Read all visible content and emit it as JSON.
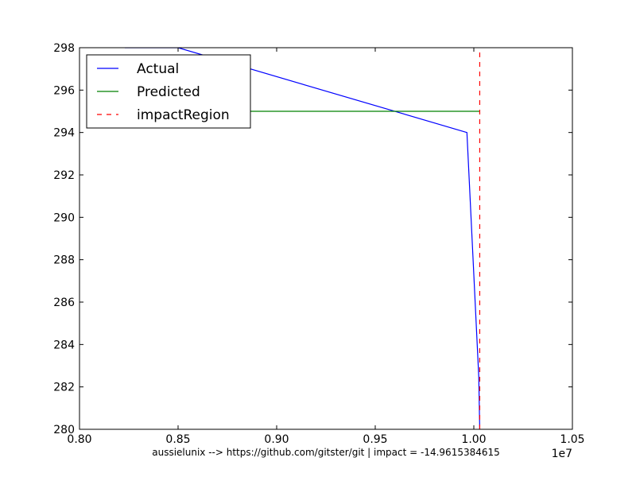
{
  "chart_data": {
    "type": "line",
    "title": "",
    "xlabel": "",
    "ylabel": "",
    "xlim": [
      0.8,
      1.05
    ],
    "ylim": [
      280,
      298
    ],
    "x_scale_label": "1e7",
    "x_ticks": [
      0.8,
      0.85,
      0.9,
      0.95,
      1.0,
      1.05
    ],
    "x_tick_labels": [
      "0.80",
      "0.85",
      "0.90",
      "0.95",
      "1.00",
      "1.05"
    ],
    "y_ticks": [
      280,
      282,
      284,
      286,
      288,
      290,
      292,
      294,
      296,
      298
    ],
    "y_tick_labels": [
      "280",
      "282",
      "284",
      "286",
      "288",
      "290",
      "292",
      "294",
      "296",
      "298"
    ],
    "grid": false,
    "legend_position": "top-left",
    "series": [
      {
        "name": "Actual",
        "color": "#0000ff",
        "style": "solid",
        "x": [
          0.823,
          0.85,
          0.9965,
          1.0025,
          1.003
        ],
        "y": [
          298,
          298,
          294,
          282.5,
          280
        ]
      },
      {
        "name": "Predicted",
        "color": "#008000",
        "style": "solid",
        "x": [
          0.86,
          1.003
        ],
        "y": [
          295,
          295
        ]
      },
      {
        "name": "impactRegion",
        "color": "#ff0000",
        "style": "dashed",
        "x": [
          1.003,
          1.003
        ],
        "y": [
          280,
          298
        ]
      }
    ]
  },
  "footer": {
    "text": "aussielunix --> https://github.com/gitster/git | impact = -14.9615384615"
  }
}
